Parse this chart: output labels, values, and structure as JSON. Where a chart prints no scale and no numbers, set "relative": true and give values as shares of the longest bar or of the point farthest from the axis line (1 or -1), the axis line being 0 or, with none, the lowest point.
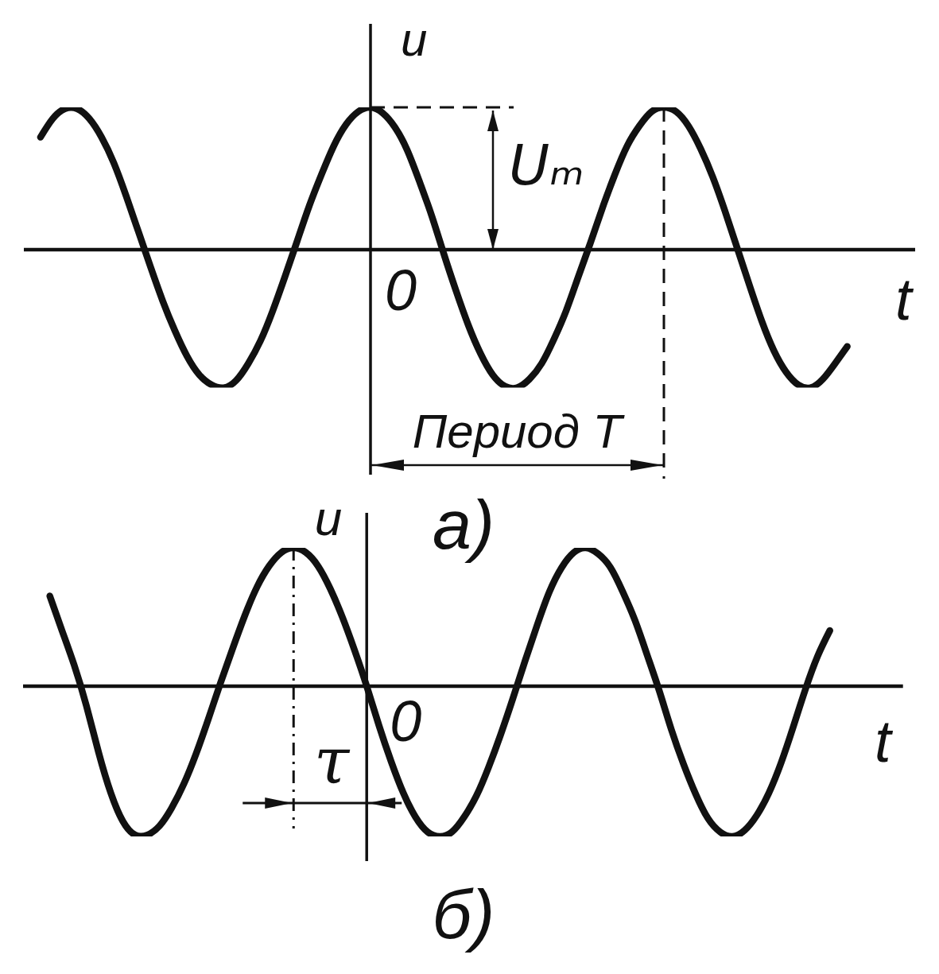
{
  "chart_data": [
    {
      "type": "line",
      "title": "а)",
      "xlabel": "t",
      "ylabel": "u",
      "relative": true,
      "color": "#111111",
      "categories": [
        null,
        null,
        null,
        null,
        null,
        null,
        null,
        null,
        null,
        null,
        null,
        null,
        null,
        null,
        null,
        null,
        null,
        null,
        null,
        null,
        null,
        null,
        null,
        null,
        null,
        null,
        null,
        null,
        null,
        null,
        null,
        null,
        null,
        null,
        null,
        null,
        null,
        null,
        null,
        null,
        null,
        null,
        null,
        null,
        null,
        null,
        null,
        null,
        null,
        null,
        null,
        null,
        null,
        null,
        null,
        null,
        null,
        null,
        null,
        null,
        null,
        null,
        null,
        null,
        null,
        null,
        null,
        null,
        null,
        null,
        null,
        null,
        null
      ],
      "values": [
        null,
        0.79,
        0.92,
        0.99,
        0.99,
        0.92,
        0.79,
        0.61,
        0.38,
        0.13,
        -0.12,
        -0.36,
        -0.57,
        -0.75,
        -0.88,
        -0.95,
        -0.97,
        -0.92,
        -0.8,
        -0.64,
        -0.43,
        -0.19,
        0.06,
        0.31,
        0.53,
        0.73,
        0.88,
        0.97,
        1,
        0.96,
        0.86,
        0.7,
        0.48,
        0.24,
        -0.03,
        -0.29,
        -0.53,
        -0.73,
        -0.88,
        -0.96,
        -0.97,
        -0.91,
        -0.8,
        -0.63,
        -0.43,
        -0.19,
        0.05,
        0.3,
        0.53,
        0.73,
        0.87,
        0.97,
        1,
        0.97,
        0.87,
        0.71,
        0.51,
        0.27,
        0.01,
        -0.25,
        -0.5,
        -0.71,
        -0.86,
        -0.95,
        -0.97,
        -0.91,
        -0.8,
        -0.68,
        null,
        null,
        null,
        null,
        null
      ],
      "annotations": [
        "Uₘ",
        "0",
        "Период T"
      ]
    },
    {
      "type": "line",
      "title": "б)",
      "xlabel": "t",
      "ylabel": "u",
      "relative": true,
      "color": "#111111",
      "categories": [
        null,
        null,
        null,
        null,
        null,
        null,
        null,
        null,
        null,
        null,
        null,
        null,
        null,
        null,
        null,
        null,
        null,
        null,
        null,
        null,
        null,
        null,
        null,
        null,
        null,
        null,
        null,
        null,
        null,
        null,
        null,
        null,
        null,
        null,
        null,
        null,
        null,
        null,
        null,
        null,
        null,
        null,
        null,
        null,
        null,
        null,
        null,
        null,
        null,
        null,
        null,
        null,
        null,
        null,
        null,
        null,
        null,
        null,
        null,
        null,
        null,
        null,
        null,
        null,
        null,
        null,
        null,
        null,
        null,
        null,
        null,
        null,
        null
      ],
      "values": [
        null,
        null,
        0.6,
        0.37,
        0.14,
        -0.13,
        -0.44,
        -0.71,
        -0.9,
        -0.99,
        -0.99,
        -0.93,
        -0.81,
        -0.65,
        -0.45,
        -0.22,
        0.02,
        0.25,
        0.47,
        0.66,
        0.8,
        0.89,
        0.92,
        0.89,
        0.8,
        0.65,
        0.46,
        0.24,
        0,
        -0.26,
        -0.5,
        -0.71,
        -0.87,
        -0.97,
        -1,
        -0.97,
        -0.87,
        -0.73,
        -0.54,
        -0.32,
        -0.08,
        0.17,
        0.41,
        0.63,
        0.79,
        0.89,
        0.92,
        0.88,
        0.79,
        0.63,
        0.44,
        0.21,
        -0.03,
        -0.29,
        -0.52,
        -0.72,
        -0.88,
        -0.97,
        -1,
        -0.96,
        -0.86,
        -0.71,
        -0.51,
        -0.27,
        -0.02,
        0.2,
        0.37,
        null,
        null,
        null,
        null,
        null,
        null
      ],
      "annotations": [
        "0",
        "τ"
      ]
    }
  ]
}
